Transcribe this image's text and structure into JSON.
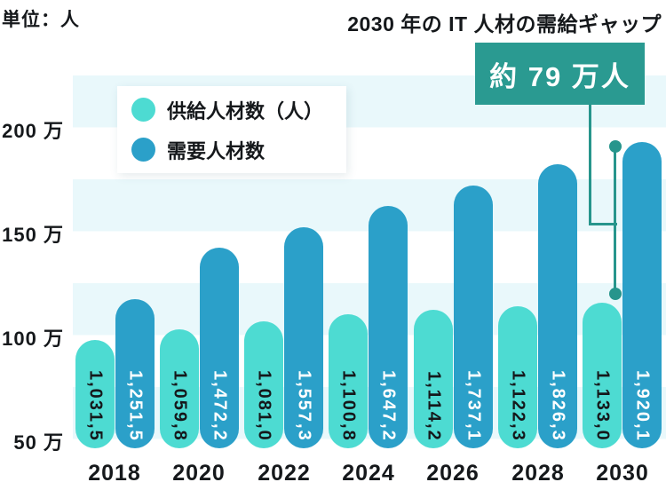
{
  "unit_label": "単位：人",
  "annotation": {
    "title": "2030 年の IT 人材の需給ギャップ",
    "badge_label": "約 79 万人"
  },
  "legend": {
    "items": [
      {
        "key": "supply",
        "label": "供給人材数（人）",
        "color": "#4DDBD2"
      },
      {
        "key": "demand",
        "label": "需要人材数",
        "color": "#2BA0C9"
      }
    ]
  },
  "chart_data": {
    "type": "bar",
    "title": "2030 年の IT 人材の需給ギャップ",
    "unit": "単位：人",
    "legend_position": "top-left-inside",
    "categories": [
      "2018",
      "2020",
      "2022",
      "2024",
      "2026",
      "2028",
      "2030"
    ],
    "series": [
      {
        "key": "supply",
        "name": "供給人材数（人）",
        "color": "#4DDBD2",
        "label_color": "#15181b",
        "value_labels": [
          "1,031,5",
          "1,059,8",
          "1,081,0",
          "1,100,8",
          "1,114,2",
          "1,122,3",
          "1,133,0"
        ],
        "values_10k": [
          103.15,
          105.98,
          108.1,
          110.08,
          111.42,
          112.23,
          113.3
        ]
      },
      {
        "key": "demand",
        "name": "需要人材数",
        "color": "#2BA0C9",
        "label_color": "#ffffff",
        "value_labels": [
          "1,251,5",
          "1,472,2",
          "1,557,3",
          "1,647,2",
          "1,737,1",
          "1,826,3",
          "1,920,1"
        ],
        "values_10k": [
          125.15,
          147.22,
          155.73,
          164.72,
          173.71,
          182.63,
          192.01
        ]
      }
    ],
    "y_axis": {
      "tick_labels": [
        "200 万",
        "150 万",
        "100 万",
        "50 万"
      ],
      "tick_values_10k": [
        200,
        150,
        100,
        50
      ]
    },
    "gap_annotation": {
      "category": "2030",
      "label": "約 79 万人",
      "from_series": "需要人材数",
      "to_series": "供給人材数（人）"
    },
    "colors": {
      "stripe": "#E9F8FB",
      "stripe_alt": "#FFFFFF",
      "accent": "#2A9A91",
      "connector": "#27958C",
      "text": "#15181B"
    }
  }
}
